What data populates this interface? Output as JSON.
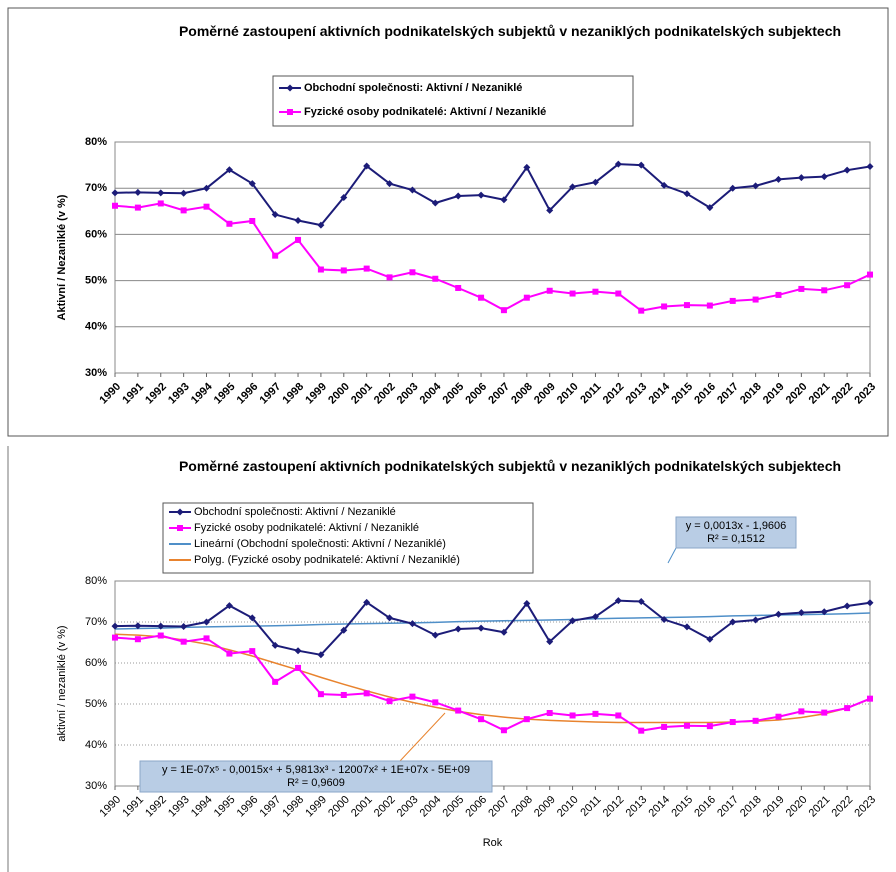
{
  "chart_data": [
    {
      "type": "line",
      "title": "Poměrné zastoupení aktivních podnikatelských subjektů v nezaniklých podnikatelských subjektech",
      "y_label": "Aktivní / Nezaniklé (v %)",
      "categories": [
        "1990",
        "1991",
        "1992",
        "1993",
        "1994",
        "1995",
        "1996",
        "1997",
        "1998",
        "1999",
        "2000",
        "2001",
        "2002",
        "2003",
        "2004",
        "2005",
        "2006",
        "2007",
        "2008",
        "2009",
        "2010",
        "2011",
        "2012",
        "2013",
        "2014",
        "2015",
        "2016",
        "2017",
        "2018",
        "2019",
        "2020",
        "2021",
        "2022",
        "2023"
      ],
      "series": [
        {
          "name": "Obchodní společnosti: Aktivní / Nezaniklé",
          "color": "#1c1c78",
          "marker": "diamond",
          "values": [
            69,
            69.1,
            69,
            68.9,
            70,
            74,
            71,
            64.3,
            63,
            62,
            68,
            74.8,
            71,
            69.6,
            66.8,
            68.3,
            68.5,
            67.5,
            74.5,
            65.2,
            70.3,
            71.3,
            75.2,
            75,
            70.6,
            68.8,
            65.8,
            70,
            70.5,
            71.9,
            72.3,
            72.5,
            73.9,
            74.7
          ]
        },
        {
          "name": "Fyzické osoby podnikatelé: Aktivní / Nezaniklé",
          "color": "#ff00ff",
          "marker": "square",
          "values": [
            66.2,
            65.8,
            66.7,
            65.2,
            66,
            62.3,
            62.9,
            55.4,
            58.8,
            52.4,
            52.2,
            52.6,
            50.7,
            51.8,
            50.4,
            48.4,
            46.3,
            43.6,
            46.3,
            47.8,
            47.2,
            47.6,
            47.2,
            43.5,
            44.4,
            44.7,
            44.6,
            45.6,
            45.9,
            46.9,
            48.2,
            47.9,
            49,
            51.3
          ]
        }
      ],
      "ylim": [
        30,
        80
      ],
      "yticks": [
        {
          "value": 30,
          "label": "30%"
        },
        {
          "value": 40,
          "label": "40%"
        },
        {
          "value": 50,
          "label": "50%"
        },
        {
          "value": 60,
          "label": "60%"
        },
        {
          "value": 70,
          "label": "70%"
        },
        {
          "value": 80,
          "label": "80%"
        }
      ],
      "grid": "solid",
      "legend": "top"
    },
    {
      "type": "line",
      "title": "Poměrné zastoupení aktivních podnikatelských subjektů v nezaniklých podnikatelských subjektech",
      "y_label": "aktivní / nezaniklé (v %)",
      "x_label": "Rok",
      "categories": [
        "1990",
        "1991",
        "1992",
        "1993",
        "1994",
        "1995",
        "1996",
        "1997",
        "1998",
        "1999",
        "2000",
        "2001",
        "2002",
        "2003",
        "2004",
        "2005",
        "2006",
        "2007",
        "2008",
        "2009",
        "2010",
        "2011",
        "2012",
        "2013",
        "2014",
        "2015",
        "2016",
        "2017",
        "2018",
        "2019",
        "2020",
        "2021",
        "2022",
        "2023"
      ],
      "series": [
        {
          "name": "Obchodní společnosti: Aktivní / Nezaniklé",
          "color": "#1c1c78",
          "marker": "diamond",
          "values": [
            69,
            69.1,
            69,
            68.9,
            70,
            74,
            71,
            64.3,
            63,
            62,
            68,
            74.8,
            71,
            69.6,
            66.8,
            68.3,
            68.5,
            67.5,
            74.5,
            65.2,
            70.3,
            71.3,
            75.2,
            75,
            70.6,
            68.8,
            65.8,
            70,
            70.5,
            71.9,
            72.3,
            72.5,
            73.9,
            74.7
          ]
        },
        {
          "name": "Fyzické osoby podnikatelé: Aktivní / Nezaniklé",
          "color": "#ff00ff",
          "marker": "square",
          "values": [
            66.2,
            65.8,
            66.7,
            65.2,
            66,
            62.3,
            62.9,
            55.4,
            58.8,
            52.4,
            52.2,
            52.6,
            50.7,
            51.8,
            50.4,
            48.4,
            46.3,
            43.6,
            46.3,
            47.8,
            47.2,
            47.6,
            47.2,
            43.5,
            44.4,
            44.7,
            44.6,
            45.6,
            45.9,
            46.9,
            48.2,
            47.9,
            49,
            51.3
          ]
        },
        {
          "name": "Lineární (Obchodní společnosti: Aktivní / Nezaniklé)",
          "color": "#4f8fc8",
          "marker": "none",
          "values": [
            68.3,
            68.4,
            68.5,
            68.7,
            68.8,
            68.9,
            69.0,
            69.1,
            69.2,
            69.4,
            69.5,
            69.6,
            69.7,
            69.8,
            69.9,
            70.1,
            70.2,
            70.3,
            70.4,
            70.5,
            70.6,
            70.8,
            70.9,
            71.0,
            71.1,
            71.2,
            71.3,
            71.5,
            71.6,
            71.7,
            71.8,
            71.9,
            72.0,
            72.2
          ]
        },
        {
          "name": "Polyg. (Fyzické osoby podnikatelé: Aktivní / Nezaniklé)",
          "color": "#e8832e",
          "marker": "none",
          "values": [
            67,
            66.8,
            66.4,
            65.6,
            64.6,
            63.2,
            61.7,
            60,
            58.3,
            56.5,
            54.8,
            53.2,
            51.7,
            50.4,
            49.2,
            48.2,
            47.4,
            46.8,
            46.3,
            46,
            45.8,
            45.6,
            45.5,
            45.5,
            45.5,
            45.5,
            45.5,
            45.6,
            45.8,
            46.1,
            46.7,
            47.6,
            49,
            51.2
          ]
        }
      ],
      "trendline_labels": [
        {
          "equation": "y = 0,0013x - 1,9606",
          "r2": "R² = 0,1512"
        },
        {
          "equation": "y = 1E-07x⁵ - 0,0015x⁴ + 5,9813x³ - 12007x² + 1E+07x - 5E+09",
          "r2": "R² = 0,9609"
        }
      ],
      "ylim": [
        30,
        80
      ],
      "yticks": [
        {
          "value": 30,
          "label": "30%"
        },
        {
          "value": 40,
          "label": "40%"
        },
        {
          "value": 50,
          "label": "50%"
        },
        {
          "value": 60,
          "label": "60%"
        },
        {
          "value": 70,
          "label": "70%"
        },
        {
          "value": 80,
          "label": "80%"
        }
      ],
      "grid": "dotted",
      "legend": "top-left"
    }
  ]
}
